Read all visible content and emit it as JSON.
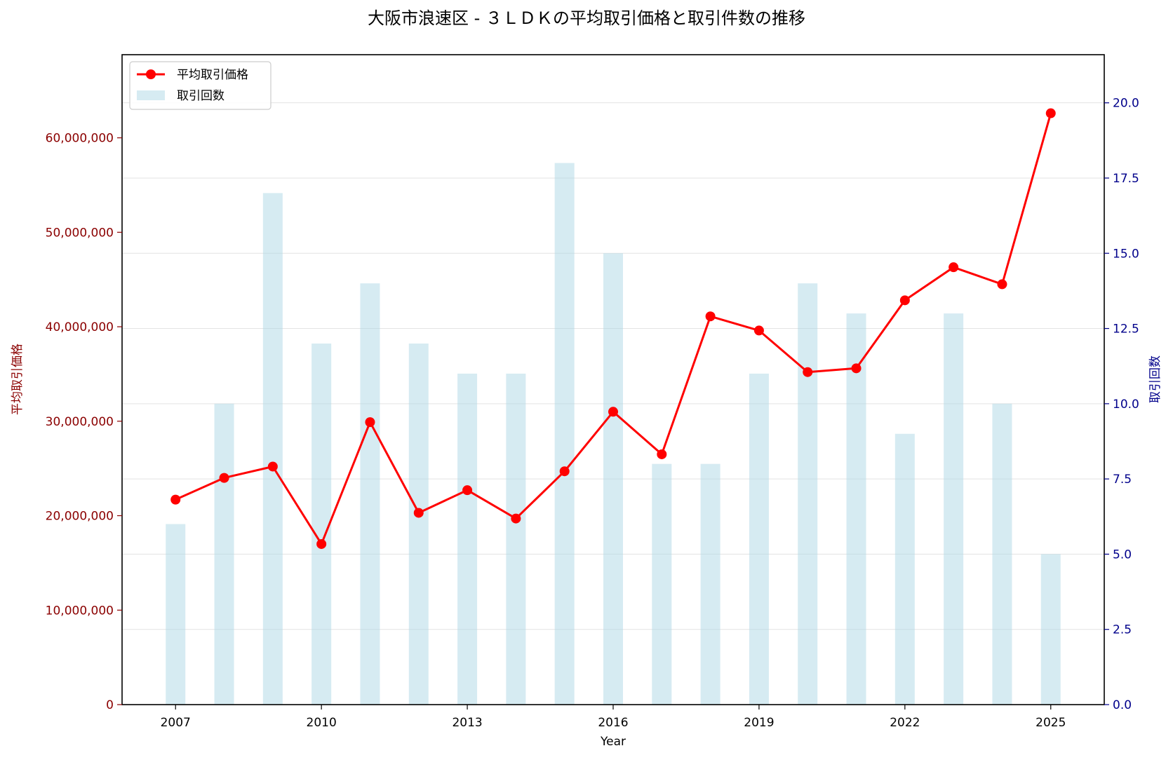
{
  "chart_data": {
    "type": "bar+line",
    "title": "大阪市浪速区 - ３ＬＤＫの平均取引価格と取引件数の推移",
    "xlabel": "Year",
    "ylabel_left": "平均取引価格",
    "ylabel_right": "取引回数",
    "x": [
      2007,
      2008,
      2009,
      2010,
      2011,
      2012,
      2013,
      2014,
      2015,
      2016,
      2017,
      2018,
      2019,
      2020,
      2021,
      2022,
      2023,
      2024,
      2025
    ],
    "x_ticks": [
      "2007",
      "2010",
      "2013",
      "2016",
      "2019",
      "2022",
      "2025"
    ],
    "xlim": [
      2005.9,
      2026.1
    ],
    "left_axis": {
      "ylim": [
        0,
        68800000
      ],
      "ticks": [
        "0",
        "10,000,000",
        "20,000,000",
        "30,000,000",
        "40,000,000",
        "50,000,000",
        "60,000,000"
      ],
      "tick_values": [
        0,
        10000000,
        20000000,
        30000000,
        40000000,
        50000000,
        60000000
      ],
      "color": "#8b0000"
    },
    "right_axis": {
      "ylim": [
        0,
        21.6
      ],
      "ticks": [
        "0.0",
        "2.5",
        "5.0",
        "7.5",
        "10.0",
        "12.5",
        "15.0",
        "17.5",
        "20.0"
      ],
      "tick_values": [
        0,
        2.5,
        5,
        7.5,
        10,
        12.5,
        15,
        17.5,
        20
      ],
      "color": "#00008b"
    },
    "series": [
      {
        "name": "平均取引価格",
        "kind": "line",
        "color": "#ff0000",
        "values": [
          21700000,
          24000000,
          25200000,
          17000000,
          29900000,
          20300000,
          22700000,
          19700000,
          24700000,
          31000000,
          26500000,
          41100000,
          39600000,
          35200000,
          35600000,
          42800000,
          46300000,
          44500000,
          62600000
        ]
      },
      {
        "name": "取引回数",
        "kind": "bar",
        "color": "#add8e6",
        "values": [
          6,
          10,
          17,
          12,
          14,
          12,
          11,
          11,
          18,
          15,
          8,
          8,
          11,
          14,
          13,
          9,
          13,
          10,
          5
        ]
      }
    ],
    "grid": true,
    "legend": "top-left"
  }
}
